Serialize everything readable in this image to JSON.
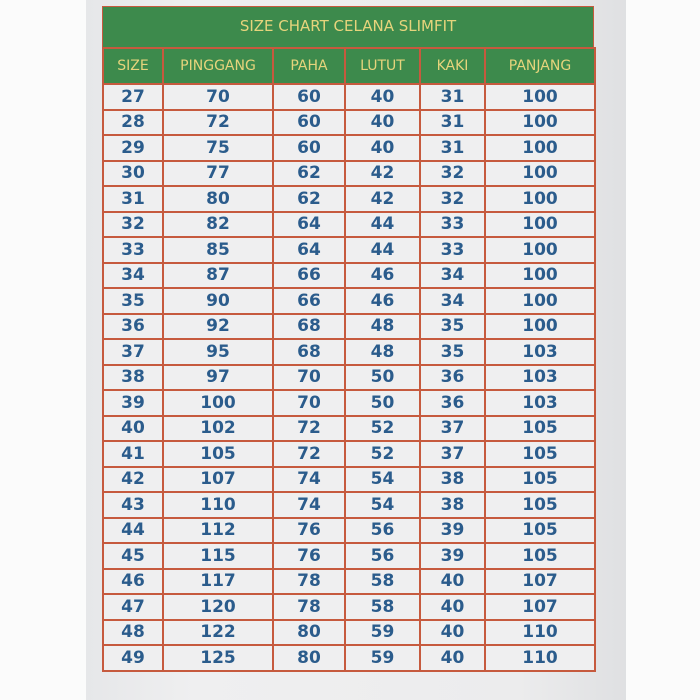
{
  "title": "SIZE CHART CELANA SLIMFIT",
  "headers": [
    "SIZE",
    "PINGGANG",
    "PAHA",
    "LUTUT",
    "KAKI",
    "PANJANG"
  ],
  "rows": [
    [
      "27",
      "70",
      "60",
      "40",
      "31",
      "100"
    ],
    [
      "28",
      "72",
      "60",
      "40",
      "31",
      "100"
    ],
    [
      "29",
      "75",
      "60",
      "40",
      "31",
      "100"
    ],
    [
      "30",
      "77",
      "62",
      "42",
      "32",
      "100"
    ],
    [
      "31",
      "80",
      "62",
      "42",
      "32",
      "100"
    ],
    [
      "32",
      "82",
      "64",
      "44",
      "33",
      "100"
    ],
    [
      "33",
      "85",
      "64",
      "44",
      "33",
      "100"
    ],
    [
      "34",
      "87",
      "66",
      "46",
      "34",
      "100"
    ],
    [
      "35",
      "90",
      "66",
      "46",
      "34",
      "100"
    ],
    [
      "36",
      "92",
      "68",
      "48",
      "35",
      "100"
    ],
    [
      "37",
      "95",
      "68",
      "48",
      "35",
      "103"
    ],
    [
      "38",
      "97",
      "70",
      "50",
      "36",
      "103"
    ],
    [
      "39",
      "100",
      "70",
      "50",
      "36",
      "103"
    ],
    [
      "40",
      "102",
      "72",
      "52",
      "37",
      "105"
    ],
    [
      "41",
      "105",
      "72",
      "52",
      "37",
      "105"
    ],
    [
      "42",
      "107",
      "74",
      "54",
      "38",
      "105"
    ],
    [
      "43",
      "110",
      "74",
      "54",
      "38",
      "105"
    ],
    [
      "44",
      "112",
      "76",
      "56",
      "39",
      "105"
    ],
    [
      "45",
      "115",
      "76",
      "56",
      "39",
      "105"
    ],
    [
      "46",
      "117",
      "78",
      "58",
      "40",
      "107"
    ],
    [
      "47",
      "120",
      "78",
      "58",
      "40",
      "107"
    ],
    [
      "48",
      "122",
      "80",
      "59",
      "40",
      "110"
    ],
    [
      "49",
      "125",
      "80",
      "59",
      "40",
      "110"
    ]
  ],
  "colors": {
    "header_bg": "#3d8a4c",
    "header_text": "#e6d47c",
    "value_text": "#2b5c8c",
    "border": "#c65a3e"
  }
}
